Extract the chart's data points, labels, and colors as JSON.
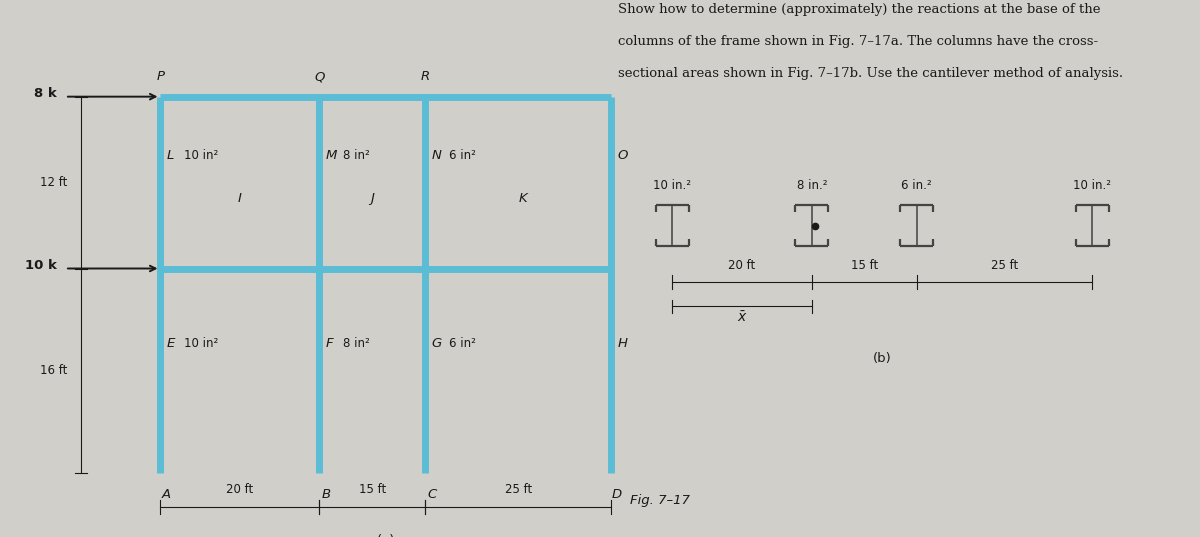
{
  "bg_color": "#d0cfc9",
  "frame_color": "#5bbcd6",
  "frame_lw": 5.0,
  "text_color": "#1a1a1a",
  "title_line1": "Show how to determine (approximately) the reactions at the base of the",
  "title_line2": "columns of the frame shown in Fig. 7–17a. The columns have the cross-",
  "title_line3": "sectional areas shown in Fig. 7–17b. Use the cantilever method of analysis.",
  "fig_label": "Fig. 7–17",
  "col_areas_b": [
    "10 in.²",
    "8 in.²",
    "6 in.²",
    "10 in.²"
  ]
}
